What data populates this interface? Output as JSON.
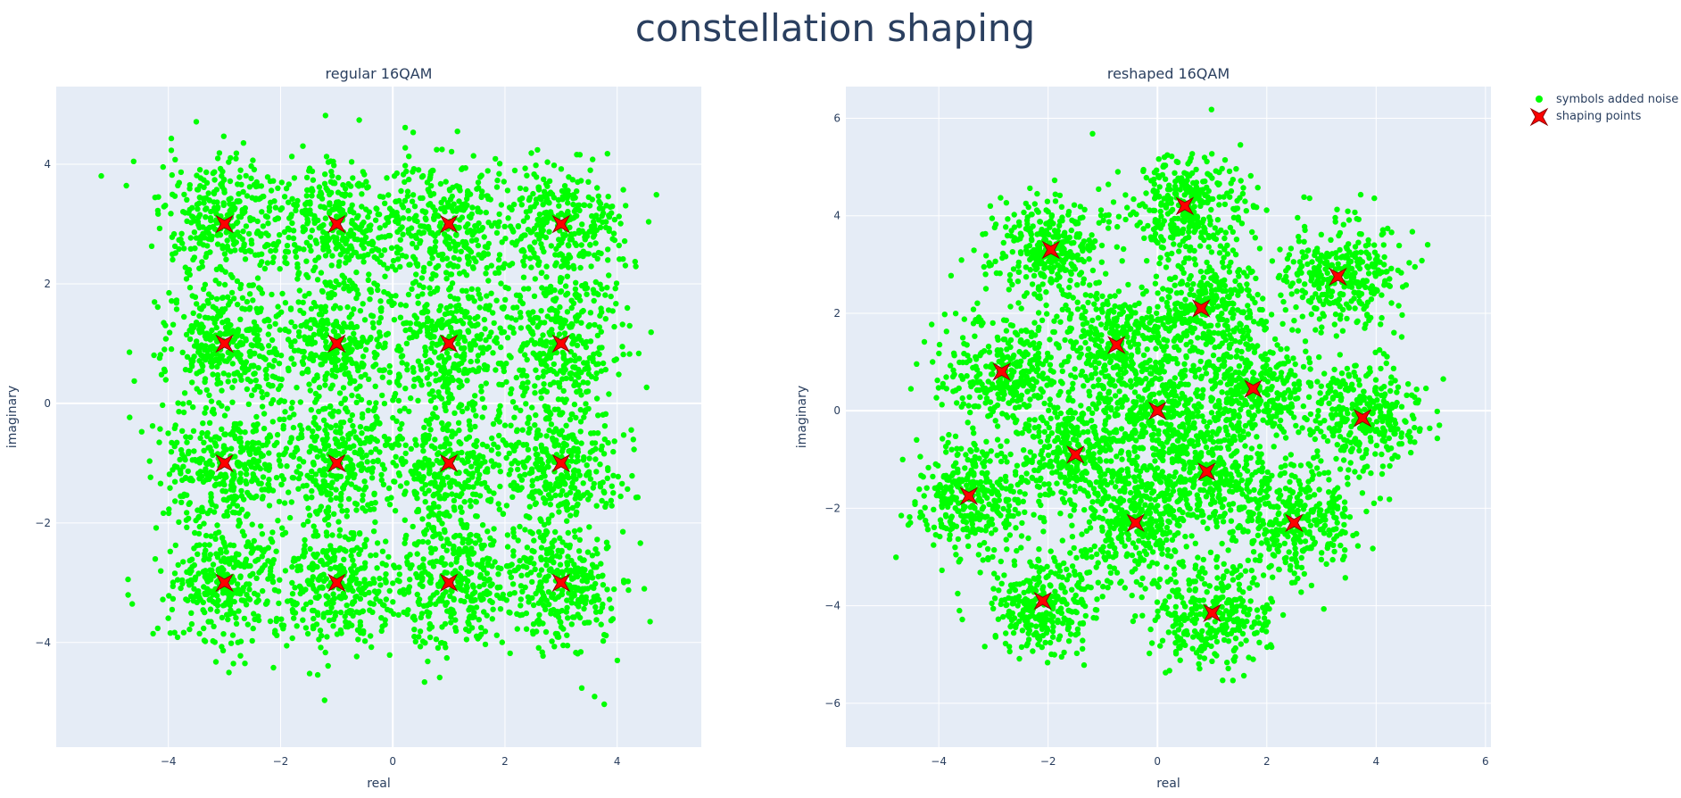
{
  "figure": {
    "title": "constellation shaping",
    "legend": {
      "placement": "top-right",
      "noise_label": "symbols added noise",
      "shaping_label": "shaping points"
    }
  },
  "colors": {
    "noise": "#00ff00",
    "shaping": "#ff0000",
    "shaping_outline": "#8b0000",
    "plot_background": "#e5ecf6",
    "grid": "#ffffff",
    "text": "#2a3f5f"
  },
  "chart_data": [
    {
      "type": "scatter",
      "title": "regular 16QAM",
      "xlabel": "real",
      "ylabel": "imaginary",
      "xlim": [
        -6.0,
        5.5
      ],
      "ylim": [
        -5.75,
        5.3
      ],
      "xticks": [
        -4,
        -2,
        0,
        2,
        4
      ],
      "yticks": [
        -4,
        -2,
        0,
        2,
        4
      ],
      "grid": true,
      "noise_spread": 0.55,
      "series": [
        {
          "name": "shaping points",
          "x": [
            -3,
            -1,
            1,
            3,
            -3,
            -1,
            1,
            3,
            -3,
            -1,
            1,
            3,
            -3,
            -1,
            1,
            3
          ],
          "y": [
            3,
            3,
            3,
            3,
            1,
            1,
            1,
            1,
            -1,
            -1,
            -1,
            -1,
            -3,
            -3,
            -3,
            -3
          ]
        }
      ]
    },
    {
      "type": "scatter",
      "title": "reshaped 16QAM",
      "xlabel": "real",
      "ylabel": "imaginary",
      "xlim": [
        -5.7,
        6.1
      ],
      "ylim": [
        -6.9,
        6.65
      ],
      "xticks": [
        -4,
        -2,
        0,
        2,
        4,
        6
      ],
      "yticks": [
        -6,
        -4,
        -2,
        0,
        2,
        4,
        6
      ],
      "grid": true,
      "noise_spread": 0.55,
      "series": [
        {
          "name": "shaping points",
          "x": [
            0.5,
            -1.95,
            0.8,
            3.3,
            -0.75,
            -2.85,
            1.75,
            0.0,
            3.75,
            -1.5,
            0.9,
            -3.45,
            -0.4,
            2.5,
            -2.1,
            1.0
          ],
          "y": [
            4.2,
            3.3,
            2.1,
            2.75,
            1.35,
            0.8,
            0.45,
            0.0,
            -0.15,
            -0.9,
            -1.25,
            -1.75,
            -2.3,
            -2.3,
            -3.9,
            -4.15
          ]
        }
      ]
    }
  ]
}
